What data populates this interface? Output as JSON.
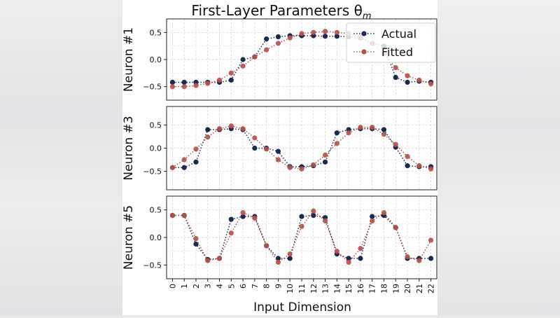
{
  "chart_data": {
    "type": "line",
    "title": "First-Layer Parameters θ",
    "title_subscript": "m",
    "xlabel": "Input Dimension",
    "x": [
      0,
      1,
      2,
      3,
      4,
      5,
      6,
      7,
      8,
      9,
      10,
      11,
      12,
      13,
      14,
      15,
      16,
      17,
      18,
      19,
      20,
      21,
      22
    ],
    "xticks": [
      "0",
      "1",
      "2",
      "3",
      "4",
      "5",
      "6",
      "7",
      "8",
      "9",
      "10",
      "11",
      "12",
      "13",
      "14",
      "15",
      "16",
      "17",
      "18",
      "19",
      "20",
      "21",
      "22"
    ],
    "legend": {
      "placement": "top-right",
      "entries": [
        "Actual",
        "Fitted"
      ]
    },
    "colors": {
      "actual": "#1b2a4e",
      "fitted": "#b5524f"
    },
    "grid": true,
    "panels": [
      {
        "ylabel": "Neuron #1",
        "ylim": [
          -0.75,
          0.75
        ],
        "yticks": [
          "0.5",
          "0.0",
          "−0.5"
        ],
        "series": [
          {
            "name": "Actual",
            "values": [
              -0.42,
              -0.42,
              -0.42,
              -0.42,
              -0.42,
              -0.38,
              0.0,
              0.05,
              0.38,
              0.42,
              0.44,
              0.44,
              0.44,
              0.43,
              0.43,
              0.42,
              0.4,
              0.3,
              0.25,
              -0.33,
              -0.42,
              -0.4,
              -0.42
            ]
          },
          {
            "name": "Fitted",
            "values": [
              -0.5,
              -0.5,
              -0.48,
              -0.44,
              -0.38,
              -0.25,
              -0.12,
              0.05,
              0.18,
              0.3,
              0.4,
              0.48,
              0.5,
              0.52,
              0.5,
              0.48,
              0.42,
              0.3,
              0.1,
              -0.15,
              -0.3,
              -0.38,
              -0.45
            ]
          }
        ]
      },
      {
        "ylabel": "Neuron #3",
        "ylim": [
          -0.9,
          0.9
        ],
        "yticks": [
          "0.5",
          "0.0",
          "−0.5"
        ],
        "series": [
          {
            "name": "Actual",
            "values": [
              -0.42,
              -0.42,
              -0.3,
              0.4,
              0.4,
              0.42,
              0.4,
              0.0,
              0.0,
              -0.07,
              -0.4,
              -0.4,
              -0.38,
              -0.3,
              0.33,
              0.4,
              0.42,
              0.42,
              0.4,
              0.02,
              -0.38,
              -0.4,
              -0.4
            ]
          },
          {
            "name": "Fitted",
            "values": [
              -0.42,
              -0.25,
              -0.02,
              0.24,
              0.42,
              0.48,
              0.42,
              0.22,
              -0.02,
              -0.25,
              -0.42,
              -0.45,
              -0.36,
              -0.15,
              0.1,
              0.33,
              0.45,
              0.45,
              0.3,
              0.08,
              -0.18,
              -0.38,
              -0.45
            ]
          }
        ]
      },
      {
        "ylabel": "Neuron #5",
        "ylim": [
          -0.75,
          0.75
        ],
        "yticks": [
          "0.5",
          "0.0",
          "−0.5"
        ],
        "series": [
          {
            "name": "Actual",
            "values": [
              0.4,
              0.4,
              -0.12,
              -0.4,
              -0.38,
              0.33,
              0.38,
              0.38,
              -0.15,
              -0.38,
              -0.38,
              0.38,
              0.4,
              0.36,
              -0.3,
              -0.38,
              -0.38,
              0.38,
              0.4,
              0.18,
              -0.38,
              -0.38,
              -0.38
            ]
          },
          {
            "name": "Fitted",
            "values": [
              0.4,
              0.4,
              -0.02,
              -0.42,
              -0.38,
              0.08,
              0.45,
              0.35,
              -0.15,
              -0.45,
              -0.3,
              0.2,
              0.48,
              0.3,
              -0.25,
              -0.45,
              -0.2,
              0.3,
              0.45,
              0.18,
              -0.35,
              -0.42,
              -0.05
            ]
          }
        ]
      }
    ]
  }
}
